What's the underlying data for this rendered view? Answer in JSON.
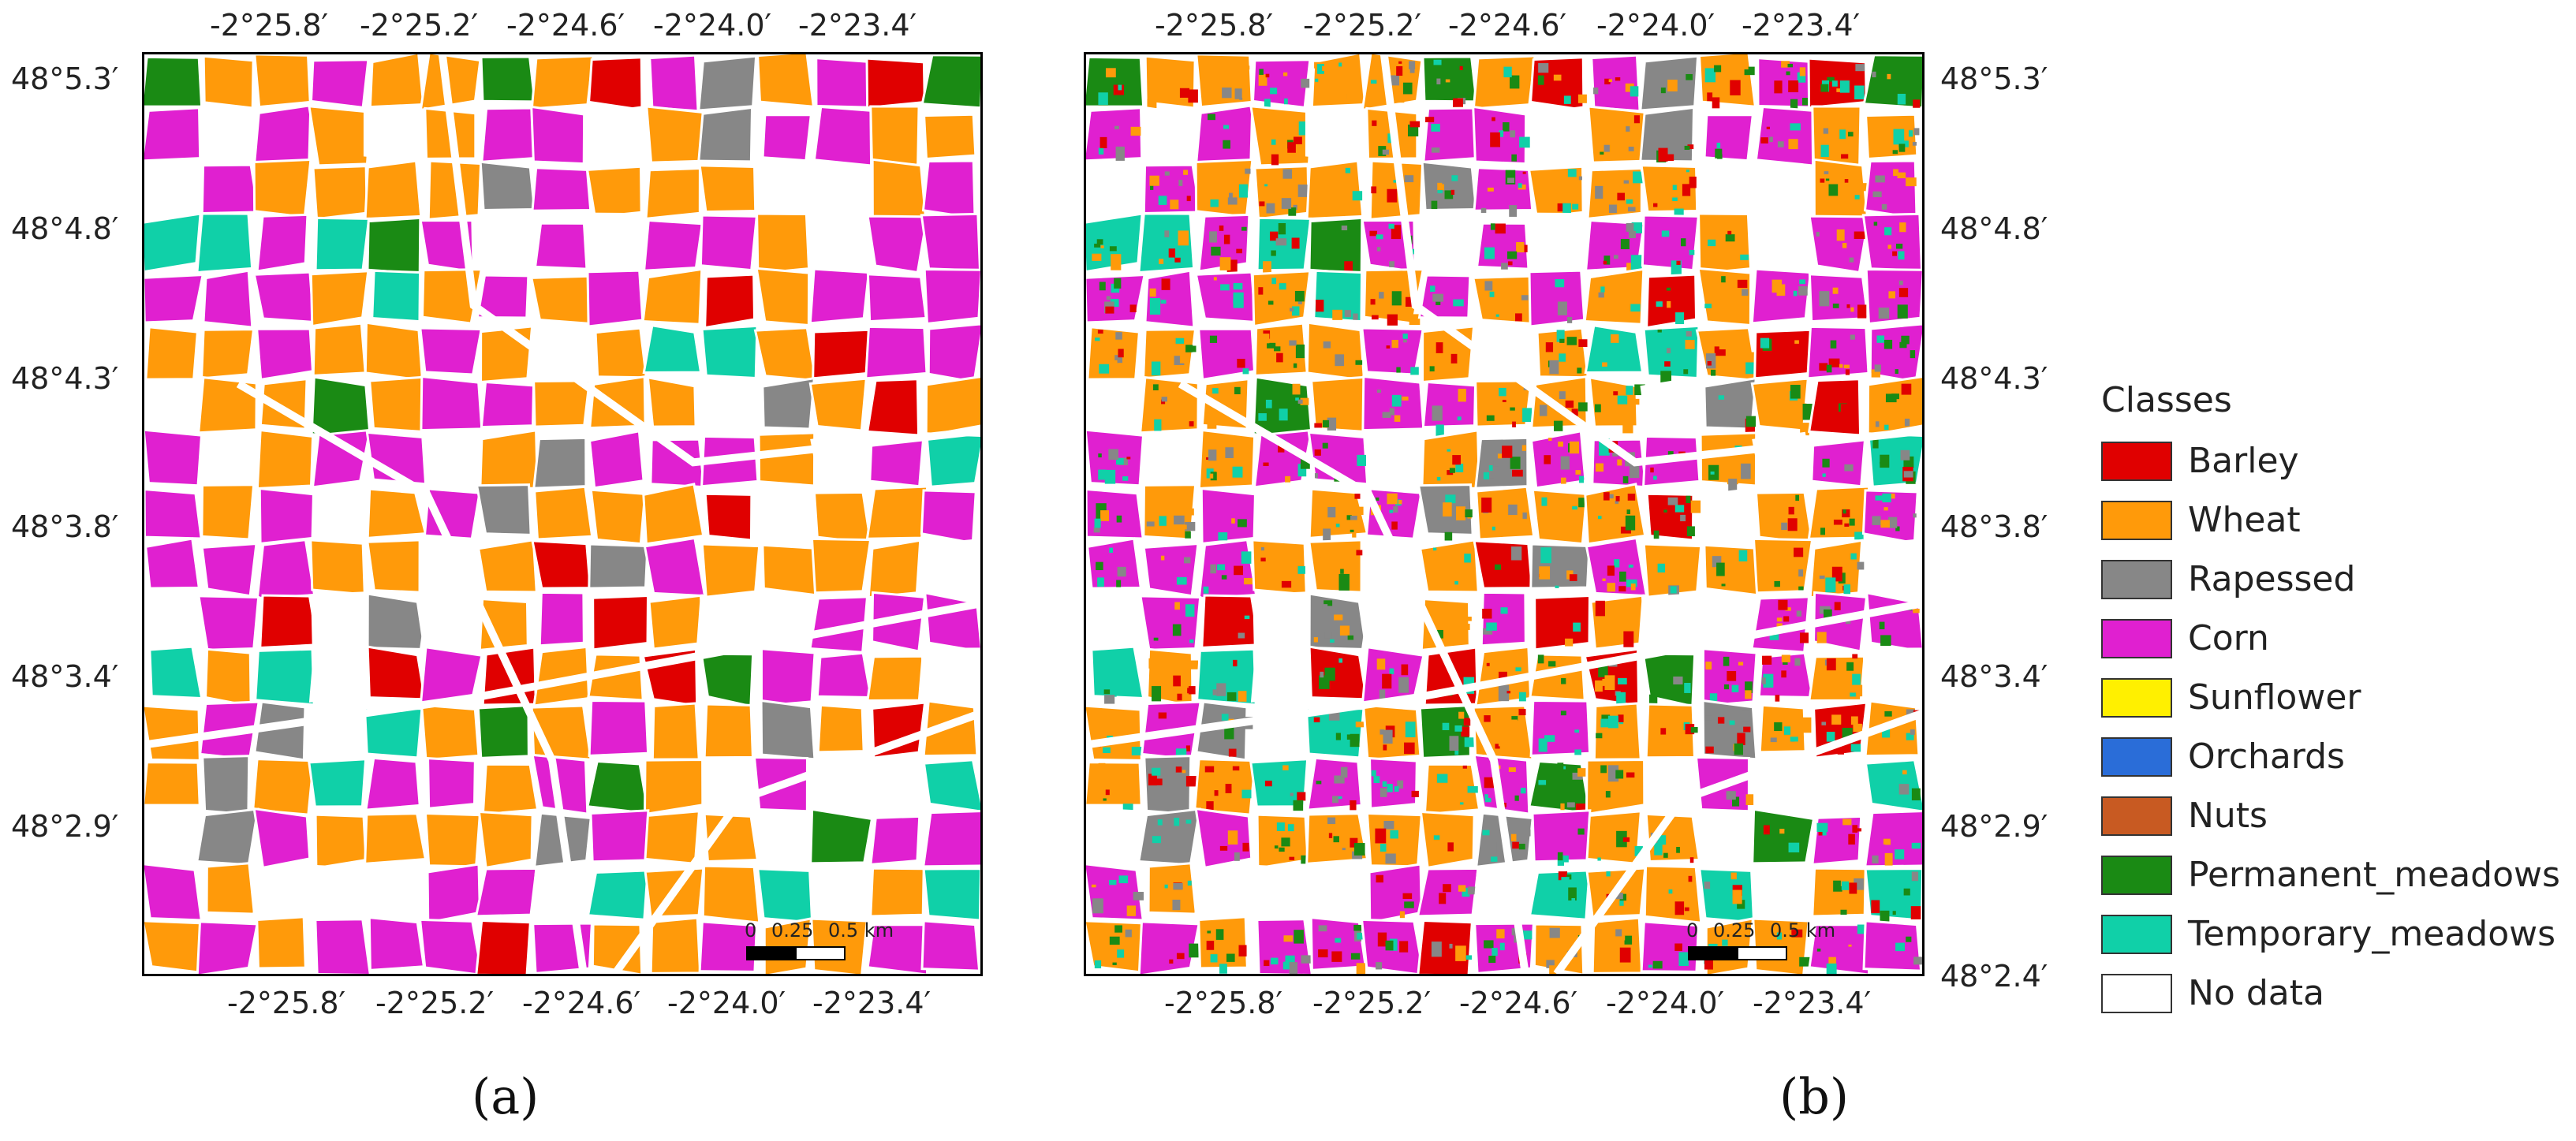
{
  "panels": [
    {
      "id": "a",
      "label": "(a)"
    },
    {
      "id": "b",
      "label": "(b)"
    }
  ],
  "lon_ticks": [
    "-2°25.8′",
    "-2°25.2′",
    "-2°24.6′",
    "-2°24.0′",
    "-2°23.4′"
  ],
  "lat_ticks": [
    "48°5.3′",
    "48°4.8′",
    "48°4.3′",
    "48°3.8′",
    "48°3.4′",
    "48°2.9′",
    "48°2.4′"
  ],
  "scalebar": {
    "zero": "0",
    "mid": "0.25",
    "end": "0.5 km"
  },
  "legend": {
    "title": "Classes",
    "items": [
      {
        "label": "Barley",
        "color": "#e00000"
      },
      {
        "label": "Wheat",
        "color": "#ff9a0a"
      },
      {
        "label": "Rapessed",
        "color": "#878787"
      },
      {
        "label": "Corn",
        "color": "#e020d0"
      },
      {
        "label": "Sunflower",
        "color": "#fff000"
      },
      {
        "label": "Orchards",
        "color": "#2a6dd8"
      },
      {
        "label": "Nuts",
        "color": "#c85a22"
      },
      {
        "label": "Permanent_meadows",
        "color": "#1a8a14"
      },
      {
        "label": "Temporary_meadows",
        "color": "#10d0a8"
      },
      {
        "label": "No data",
        "color": "#ffffff"
      }
    ]
  }
}
